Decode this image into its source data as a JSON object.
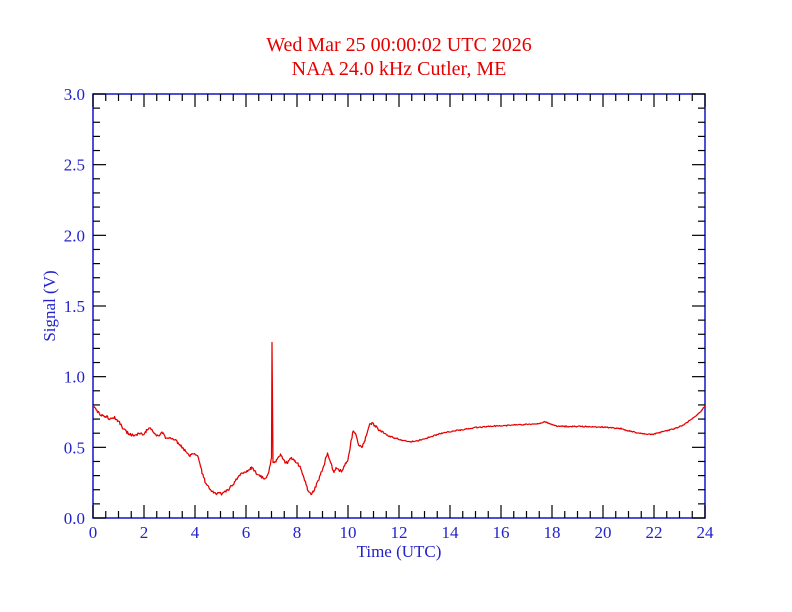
{
  "colors": {
    "title_red": "#e60000",
    "curve_red": "#e60000",
    "axis_blue": "#2222cc",
    "tick_black": "#000000",
    "background": "#ffffff"
  },
  "chart_data": {
    "type": "line",
    "title": "Wed Mar 25 00:00:02 UTC 2026",
    "subtitle": "NAA 24.0 kHz Cutler, ME",
    "xlabel": "Time (UTC)",
    "ylabel": "Signal (V)",
    "xlim": [
      0,
      24
    ],
    "ylim": [
      0.0,
      3.0
    ],
    "x_major_step": 2,
    "x_minor_step": 0.5,
    "y_major_step": 0.5,
    "y_minor_step": 0.1,
    "x_ticklabels": [
      "0",
      "2",
      "4",
      "6",
      "8",
      "10",
      "12",
      "14",
      "16",
      "18",
      "20",
      "22",
      "24"
    ],
    "y_ticklabels": [
      "0.0",
      "0.5",
      "1.0",
      "1.5",
      "2.0",
      "2.5",
      "3.0"
    ],
    "grid": false,
    "legend": "none",
    "axis_color": "#2222cc",
    "tick_color": "#000000",
    "line_color": "#e60000",
    "annotations": [
      {
        "label": "narrow spike",
        "t": 7.02,
        "v": 1.24
      }
    ],
    "series": [
      {
        "name": "NAA 24.0 kHz signal strength",
        "points": [
          [
            0,
            0.79
          ],
          [
            0.15,
            0.755
          ],
          [
            0.3,
            0.73
          ],
          [
            0.5,
            0.72
          ],
          [
            0.65,
            0.7
          ],
          [
            0.85,
            0.71
          ],
          [
            1.0,
            0.685
          ],
          [
            1.15,
            0.64
          ],
          [
            1.3,
            0.61
          ],
          [
            1.5,
            0.585
          ],
          [
            1.7,
            0.59
          ],
          [
            1.85,
            0.6
          ],
          [
            2.0,
            0.585
          ],
          [
            2.1,
            0.62
          ],
          [
            2.25,
            0.645
          ],
          [
            2.4,
            0.6
          ],
          [
            2.55,
            0.58
          ],
          [
            2.7,
            0.61
          ],
          [
            2.85,
            0.57
          ],
          [
            3.0,
            0.565
          ],
          [
            3.2,
            0.555
          ],
          [
            3.4,
            0.52
          ],
          [
            3.6,
            0.48
          ],
          [
            3.8,
            0.435
          ],
          [
            3.95,
            0.46
          ],
          [
            4.1,
            0.445
          ],
          [
            4.25,
            0.34
          ],
          [
            4.4,
            0.26
          ],
          [
            4.55,
            0.21
          ],
          [
            4.7,
            0.185
          ],
          [
            4.85,
            0.175
          ],
          [
            5.0,
            0.17
          ],
          [
            5.15,
            0.18
          ],
          [
            5.3,
            0.2
          ],
          [
            5.5,
            0.24
          ],
          [
            5.7,
            0.29
          ],
          [
            5.85,
            0.315
          ],
          [
            6.0,
            0.33
          ],
          [
            6.15,
            0.35
          ],
          [
            6.25,
            0.355
          ],
          [
            6.4,
            0.32
          ],
          [
            6.55,
            0.3
          ],
          [
            6.7,
            0.275
          ],
          [
            6.8,
            0.285
          ],
          [
            6.9,
            0.33
          ],
          [
            6.98,
            0.41
          ],
          [
            7.0,
            0.42
          ],
          [
            7.02,
            1.24
          ],
          [
            7.05,
            0.4
          ],
          [
            7.12,
            0.385
          ],
          [
            7.22,
            0.42
          ],
          [
            7.35,
            0.45
          ],
          [
            7.5,
            0.4
          ],
          [
            7.62,
            0.39
          ],
          [
            7.75,
            0.425
          ],
          [
            7.9,
            0.41
          ],
          [
            8.0,
            0.39
          ],
          [
            8.15,
            0.35
          ],
          [
            8.3,
            0.27
          ],
          [
            8.45,
            0.19
          ],
          [
            8.55,
            0.165
          ],
          [
            8.65,
            0.19
          ],
          [
            8.8,
            0.25
          ],
          [
            8.95,
            0.32
          ],
          [
            9.1,
            0.4
          ],
          [
            9.2,
            0.46
          ],
          [
            9.32,
            0.4
          ],
          [
            9.45,
            0.32
          ],
          [
            9.55,
            0.36
          ],
          [
            9.65,
            0.34
          ],
          [
            9.78,
            0.335
          ],
          [
            9.9,
            0.39
          ],
          [
            10.0,
            0.41
          ],
          [
            10.1,
            0.52
          ],
          [
            10.2,
            0.62
          ],
          [
            10.3,
            0.6
          ],
          [
            10.42,
            0.52
          ],
          [
            10.52,
            0.5
          ],
          [
            10.62,
            0.53
          ],
          [
            10.72,
            0.58
          ],
          [
            10.82,
            0.65
          ],
          [
            10.92,
            0.67
          ],
          [
            11.05,
            0.655
          ],
          [
            11.2,
            0.625
          ],
          [
            11.4,
            0.6
          ],
          [
            11.6,
            0.58
          ],
          [
            11.85,
            0.565
          ],
          [
            12.1,
            0.55
          ],
          [
            12.4,
            0.54
          ],
          [
            12.7,
            0.545
          ],
          [
            13.0,
            0.56
          ],
          [
            13.3,
            0.58
          ],
          [
            13.7,
            0.6
          ],
          [
            14.1,
            0.615
          ],
          [
            14.5,
            0.625
          ],
          [
            15.0,
            0.64
          ],
          [
            15.5,
            0.648
          ],
          [
            16.0,
            0.652
          ],
          [
            16.5,
            0.658
          ],
          [
            17.0,
            0.662
          ],
          [
            17.4,
            0.665
          ],
          [
            17.7,
            0.68
          ],
          [
            17.9,
            0.668
          ],
          [
            18.1,
            0.652
          ],
          [
            18.5,
            0.648
          ],
          [
            19.0,
            0.648
          ],
          [
            19.5,
            0.645
          ],
          [
            20.0,
            0.642
          ],
          [
            20.4,
            0.638
          ],
          [
            20.7,
            0.632
          ],
          [
            21.0,
            0.618
          ],
          [
            21.3,
            0.603
          ],
          [
            21.6,
            0.594
          ],
          [
            21.9,
            0.59
          ],
          [
            22.2,
            0.603
          ],
          [
            22.5,
            0.618
          ],
          [
            22.8,
            0.632
          ],
          [
            23.1,
            0.652
          ],
          [
            23.4,
            0.69
          ],
          [
            23.7,
            0.733
          ],
          [
            23.9,
            0.765
          ],
          [
            24.0,
            0.795
          ]
        ]
      }
    ]
  }
}
